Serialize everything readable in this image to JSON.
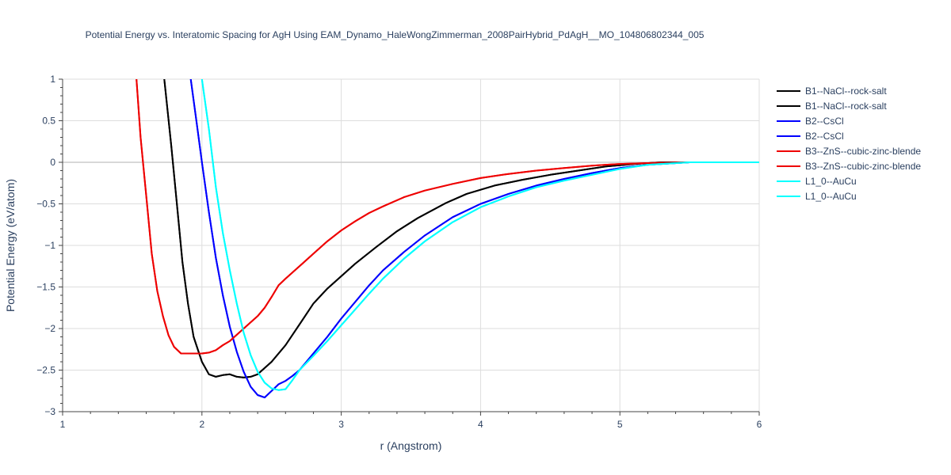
{
  "chart_data": {
    "type": "line",
    "title": "Potential Energy vs. Interatomic Spacing for AgH Using EAM_Dynamo_HaleWongZimmerman_2008PairHybrid_PdAgH__MO_104806802344_005",
    "xlabel": "r (Angstrom)",
    "ylabel": "Potential Energy (eV/atom)",
    "xlim": [
      1,
      6
    ],
    "ylim": [
      -3,
      1
    ],
    "x_ticks": [
      "1",
      "2",
      "3",
      "4",
      "5",
      "6"
    ],
    "y_ticks": [
      "1",
      "0.5",
      "0",
      "−0.5",
      "−1",
      "−1.5",
      "−2",
      "−2.5",
      "−3"
    ],
    "grid": true,
    "legend_position": "right",
    "series": [
      {
        "name": "B1--NaCl--rock-salt",
        "color": "#000000",
        "x": [
          1.73,
          1.78,
          1.82,
          1.86,
          1.9,
          1.94,
          2.0,
          2.05,
          2.1,
          2.15,
          2.2,
          2.25,
          2.3,
          2.35,
          2.4,
          2.5,
          2.6,
          2.7,
          2.8,
          2.9,
          3.0,
          3.1,
          3.25,
          3.4,
          3.55,
          3.75,
          3.9,
          4.1,
          4.3,
          4.5,
          4.7,
          4.9,
          5.1,
          5.3,
          5.5,
          6.0
        ],
        "y": [
          1.0,
          0.2,
          -0.5,
          -1.2,
          -1.7,
          -2.1,
          -2.4,
          -2.55,
          -2.58,
          -2.56,
          -2.55,
          -2.58,
          -2.59,
          -2.58,
          -2.55,
          -2.4,
          -2.2,
          -1.95,
          -1.7,
          -1.52,
          -1.37,
          -1.22,
          -1.02,
          -0.83,
          -0.67,
          -0.49,
          -0.38,
          -0.28,
          -0.21,
          -0.15,
          -0.1,
          -0.05,
          -0.02,
          0.0,
          0.0,
          0.0
        ]
      },
      {
        "name": "B1--NaCl--rock-salt",
        "color": "#000000",
        "x": [
          1.73,
          1.78,
          1.82,
          1.86,
          1.9,
          1.94,
          2.0,
          2.05,
          2.1,
          2.15,
          2.2,
          2.25,
          2.3,
          2.35,
          2.4,
          2.5,
          2.6,
          2.7,
          2.8,
          2.9,
          3.0,
          3.1,
          3.25,
          3.4,
          3.55,
          3.75,
          3.9,
          4.1,
          4.3,
          4.5,
          4.7,
          4.9,
          5.1,
          5.3,
          5.5,
          6.0
        ],
        "y": [
          1.0,
          0.2,
          -0.5,
          -1.2,
          -1.7,
          -2.1,
          -2.4,
          -2.55,
          -2.58,
          -2.56,
          -2.55,
          -2.58,
          -2.59,
          -2.58,
          -2.55,
          -2.4,
          -2.2,
          -1.95,
          -1.7,
          -1.52,
          -1.37,
          -1.22,
          -1.02,
          -0.83,
          -0.67,
          -0.49,
          -0.38,
          -0.28,
          -0.21,
          -0.15,
          -0.1,
          -0.05,
          -0.02,
          0.0,
          0.0,
          0.0
        ]
      },
      {
        "name": "B2--CsCl",
        "color": "#0000ff",
        "x": [
          1.92,
          1.96,
          2.0,
          2.05,
          2.1,
          2.15,
          2.2,
          2.25,
          2.3,
          2.35,
          2.4,
          2.45,
          2.5,
          2.55,
          2.6,
          2.65,
          2.7,
          2.8,
          2.9,
          3.0,
          3.1,
          3.2,
          3.3,
          3.45,
          3.6,
          3.8,
          4.0,
          4.2,
          4.4,
          4.6,
          4.8,
          5.0,
          5.2,
          5.5,
          6.0
        ],
        "y": [
          1.0,
          0.5,
          0.0,
          -0.6,
          -1.15,
          -1.6,
          -1.98,
          -2.28,
          -2.52,
          -2.7,
          -2.8,
          -2.83,
          -2.75,
          -2.67,
          -2.63,
          -2.57,
          -2.5,
          -2.3,
          -2.1,
          -1.88,
          -1.68,
          -1.48,
          -1.3,
          -1.08,
          -0.88,
          -0.66,
          -0.5,
          -0.38,
          -0.28,
          -0.2,
          -0.13,
          -0.07,
          -0.03,
          0.0,
          0.0
        ]
      },
      {
        "name": "B2--CsCl",
        "color": "#0000ff",
        "x": [
          1.92,
          1.96,
          2.0,
          2.05,
          2.1,
          2.15,
          2.2,
          2.25,
          2.3,
          2.35,
          2.4,
          2.45,
          2.5,
          2.55,
          2.6,
          2.65,
          2.7,
          2.8,
          2.9,
          3.0,
          3.1,
          3.2,
          3.3,
          3.45,
          3.6,
          3.8,
          4.0,
          4.2,
          4.4,
          4.6,
          4.8,
          5.0,
          5.2,
          5.5,
          6.0
        ],
        "y": [
          1.0,
          0.5,
          0.0,
          -0.6,
          -1.15,
          -1.6,
          -1.98,
          -2.28,
          -2.52,
          -2.7,
          -2.8,
          -2.83,
          -2.75,
          -2.67,
          -2.63,
          -2.57,
          -2.5,
          -2.3,
          -2.1,
          -1.88,
          -1.68,
          -1.48,
          -1.3,
          -1.08,
          -0.88,
          -0.66,
          -0.5,
          -0.38,
          -0.28,
          -0.2,
          -0.13,
          -0.07,
          -0.03,
          0.0,
          0.0
        ]
      },
      {
        "name": "B3--ZnS--cubic-zinc-blende",
        "color": "#ee0000",
        "x": [
          1.53,
          1.56,
          1.6,
          1.64,
          1.68,
          1.72,
          1.76,
          1.8,
          1.85,
          1.9,
          1.95,
          2.0,
          2.05,
          2.1,
          2.15,
          2.2,
          2.3,
          2.4,
          2.45,
          2.5,
          2.55,
          2.6,
          2.7,
          2.8,
          2.9,
          3.0,
          3.1,
          3.2,
          3.3,
          3.45,
          3.6,
          3.8,
          4.0,
          4.2,
          4.4,
          4.6,
          4.8,
          5.0,
          5.2,
          5.5,
          6.0
        ],
        "y": [
          1.0,
          0.3,
          -0.4,
          -1.1,
          -1.55,
          -1.85,
          -2.08,
          -2.22,
          -2.3,
          -2.3,
          -2.3,
          -2.3,
          -2.29,
          -2.26,
          -2.2,
          -2.15,
          -2.0,
          -1.85,
          -1.75,
          -1.62,
          -1.48,
          -1.4,
          -1.25,
          -1.1,
          -0.95,
          -0.82,
          -0.71,
          -0.61,
          -0.53,
          -0.42,
          -0.34,
          -0.26,
          -0.19,
          -0.14,
          -0.1,
          -0.07,
          -0.04,
          -0.02,
          -0.01,
          0.0,
          0.0
        ]
      },
      {
        "name": "B3--ZnS--cubic-zinc-blende",
        "color": "#ee0000",
        "x": [
          1.53,
          1.56,
          1.6,
          1.64,
          1.68,
          1.72,
          1.76,
          1.8,
          1.85,
          1.9,
          1.95,
          2.0,
          2.05,
          2.1,
          2.15,
          2.2,
          2.3,
          2.4,
          2.45,
          2.5,
          2.55,
          2.6,
          2.7,
          2.8,
          2.9,
          3.0,
          3.1,
          3.2,
          3.3,
          3.45,
          3.6,
          3.8,
          4.0,
          4.2,
          4.4,
          4.6,
          4.8,
          5.0,
          5.2,
          5.5,
          6.0
        ],
        "y": [
          1.0,
          0.3,
          -0.4,
          -1.1,
          -1.55,
          -1.85,
          -2.08,
          -2.22,
          -2.3,
          -2.3,
          -2.3,
          -2.3,
          -2.29,
          -2.26,
          -2.2,
          -2.15,
          -2.0,
          -1.85,
          -1.75,
          -1.62,
          -1.48,
          -1.4,
          -1.25,
          -1.1,
          -0.95,
          -0.82,
          -0.71,
          -0.61,
          -0.53,
          -0.42,
          -0.34,
          -0.26,
          -0.19,
          -0.14,
          -0.1,
          -0.07,
          -0.04,
          -0.02,
          -0.01,
          0.0,
          0.0
        ]
      },
      {
        "name": "L1_0--AuCu",
        "color": "#00ffff",
        "x": [
          2.0,
          2.05,
          2.1,
          2.15,
          2.2,
          2.25,
          2.3,
          2.35,
          2.4,
          2.45,
          2.5,
          2.55,
          2.6,
          2.65,
          2.7,
          2.8,
          2.9,
          3.0,
          3.1,
          3.2,
          3.3,
          3.45,
          3.6,
          3.8,
          4.0,
          4.2,
          4.4,
          4.6,
          4.8,
          5.0,
          5.2,
          5.5,
          6.0
        ],
        "y": [
          1.0,
          0.4,
          -0.3,
          -0.85,
          -1.3,
          -1.7,
          -2.05,
          -2.32,
          -2.52,
          -2.65,
          -2.72,
          -2.74,
          -2.73,
          -2.62,
          -2.5,
          -2.33,
          -2.15,
          -1.96,
          -1.77,
          -1.58,
          -1.4,
          -1.16,
          -0.95,
          -0.72,
          -0.54,
          -0.41,
          -0.3,
          -0.22,
          -0.15,
          -0.08,
          -0.03,
          0.0,
          0.0
        ]
      },
      {
        "name": "L1_0--AuCu",
        "color": "#00ffff",
        "x": [
          2.0,
          2.05,
          2.1,
          2.15,
          2.2,
          2.25,
          2.3,
          2.35,
          2.4,
          2.45,
          2.5,
          2.55,
          2.6,
          2.65,
          2.7,
          2.8,
          2.9,
          3.0,
          3.1,
          3.2,
          3.3,
          3.45,
          3.6,
          3.8,
          4.0,
          4.2,
          4.4,
          4.6,
          4.8,
          5.0,
          5.2,
          5.5,
          6.0
        ],
        "y": [
          1.0,
          0.4,
          -0.3,
          -0.85,
          -1.3,
          -1.7,
          -2.05,
          -2.32,
          -2.52,
          -2.65,
          -2.72,
          -2.74,
          -2.73,
          -2.62,
          -2.5,
          -2.33,
          -2.15,
          -1.96,
          -1.77,
          -1.58,
          -1.4,
          -1.16,
          -0.95,
          -0.72,
          -0.54,
          -0.41,
          -0.3,
          -0.22,
          -0.15,
          -0.08,
          -0.03,
          0.0,
          0.0
        ]
      }
    ]
  }
}
